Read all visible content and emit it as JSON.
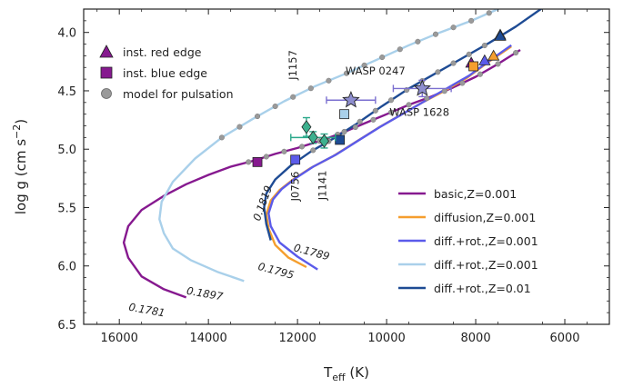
{
  "chart_data": {
    "type": "line",
    "xlabel": {
      "main": "T",
      "sub": "eff",
      "unit": " (K)"
    },
    "ylabel": {
      "main": "log g (cm s",
      "sup": "−2",
      "end": ")"
    },
    "xlim": [
      16800,
      5000
    ],
    "ylim": [
      6.5,
      3.8
    ],
    "x_ticks": [
      16000,
      14000,
      12000,
      10000,
      8000,
      6000
    ],
    "y_ticks": [
      4.0,
      4.5,
      5.0,
      5.5,
      6.0,
      6.5
    ],
    "x_tick_labels": [
      "16000",
      "14000",
      "12000",
      "10000",
      "8000",
      "6000"
    ],
    "y_tick_labels": [
      "4.0",
      "4.5",
      "5.0",
      "5.5",
      "6.0",
      "6.5"
    ],
    "grid": false,
    "colors": {
      "basic": "#86198f",
      "diffusion": "#f59e2e",
      "diffrot001": "#5b5bea",
      "diffrot001light": "#a9d0ea",
      "diffrot01": "#1e4b94",
      "model_point": "#9a9a9a",
      "object_star": "#8e8ecf",
      "error_purple": "#7b6fd0",
      "error_teal": "#2aa88a",
      "diamond": "#3cb08e"
    },
    "tracks": [
      {
        "name": "basic,Z=0.001",
        "color_key": "basic",
        "mass_label": "0.1781",
        "x": [
          14500,
          15000,
          15500,
          15800,
          15900,
          15800,
          15500,
          15000,
          14500,
          14000,
          13500,
          13000,
          12500,
          12000,
          11500,
          11000,
          10500,
          10000,
          9500,
          9000,
          8500,
          8000,
          7500,
          7000
        ],
        "y": [
          6.27,
          6.2,
          6.09,
          5.93,
          5.8,
          5.66,
          5.52,
          5.4,
          5.3,
          5.22,
          5.15,
          5.1,
          5.04,
          4.99,
          4.93,
          4.86,
          4.78,
          4.7,
          4.62,
          4.55,
          4.47,
          4.38,
          4.27,
          4.15
        ]
      },
      {
        "name": "diffusion,Z=0.001",
        "color_key": "diffusion",
        "mass_label": "0.1795",
        "x": [
          11800,
          12200,
          12500,
          12650,
          12700,
          12600,
          12400,
          12100,
          11700,
          11200,
          10700,
          10200,
          9700,
          9200,
          8700,
          8200,
          7700,
          7200
        ],
        "y": [
          6.01,
          5.93,
          5.82,
          5.68,
          5.56,
          5.44,
          5.35,
          5.26,
          5.16,
          5.06,
          4.94,
          4.82,
          4.71,
          4.6,
          4.5,
          4.39,
          4.25,
          4.12
        ]
      },
      {
        "name": "diff.+rot.,Z=0.001",
        "color_key": "diffrot001",
        "mass_label": "0.1789",
        "x": [
          11550,
          12000,
          12400,
          12600,
          12650,
          12550,
          12350,
          12050,
          11650,
          11150,
          10650,
          10150,
          9650,
          9150,
          8650,
          8150,
          7650,
          7200
        ],
        "y": [
          6.03,
          5.92,
          5.8,
          5.66,
          5.55,
          5.43,
          5.34,
          5.25,
          5.15,
          5.05,
          4.93,
          4.81,
          4.7,
          4.59,
          4.48,
          4.37,
          4.23,
          4.11
        ]
      },
      {
        "name": "diff.+rot.,Z=0.001",
        "color_key": "diffrot001light",
        "mass_label": "0.1897",
        "x": [
          13200,
          13800,
          14400,
          14800,
          15000,
          15100,
          15050,
          14800,
          14300,
          13700,
          13000,
          12300,
          11600,
          10900,
          10200,
          9500,
          8800,
          8100,
          7500,
          7000,
          6500
        ],
        "y": [
          6.13,
          6.05,
          5.95,
          5.85,
          5.72,
          5.6,
          5.45,
          5.28,
          5.08,
          4.9,
          4.74,
          4.59,
          4.46,
          4.35,
          4.23,
          4.11,
          4.0,
          3.9,
          3.8,
          3.72,
          3.63
        ]
      },
      {
        "name": "diff.+rot.,Z=0.01",
        "color_key": "diffrot01",
        "mass_label": "0.1819",
        "x": [
          12600,
          12700,
          12750,
          12700,
          12500,
          12150,
          11700,
          11200,
          10700,
          10100,
          9500,
          8900,
          8300,
          7700,
          7100,
          6500
        ],
        "y": [
          5.78,
          5.64,
          5.5,
          5.38,
          5.26,
          5.14,
          5.02,
          4.91,
          4.79,
          4.63,
          4.48,
          4.35,
          4.22,
          4.09,
          3.95,
          3.79
        ]
      }
    ],
    "model_points": [
      {
        "track": 0,
        "x": [
          13100,
          12700,
          12300,
          11900,
          11500,
          11100,
          10700,
          10300,
          9900,
          9500,
          9100,
          8700,
          8300,
          7900,
          7500,
          7100
        ]
      },
      {
        "track": 3,
        "x": [
          13700,
          13300,
          12900,
          12500,
          12100,
          11700,
          11300,
          10900,
          10500,
          10100,
          9700,
          9300,
          8900,
          8500,
          8100,
          7700,
          7300
        ]
      },
      {
        "track": 4,
        "x": [
          12700,
          12350,
          12000,
          11650,
          11300,
          10950,
          10600,
          10250,
          9900,
          9550,
          9200,
          8850,
          8500,
          8150,
          7800,
          7450
        ]
      }
    ],
    "red_edges": [
      {
        "x": 7450,
        "y": 4.02,
        "color_key": "diffrot001light"
      },
      {
        "x": 7450,
        "y": 4.03,
        "color_key": "diffrot01"
      },
      {
        "x": 7600,
        "y": 4.2,
        "color_key": "diffusion"
      },
      {
        "x": 7800,
        "y": 4.24,
        "color_key": "diffrot001"
      },
      {
        "x": 8100,
        "y": 4.26,
        "color_key": "basic"
      }
    ],
    "blue_edges": [
      {
        "x": 12900,
        "y": 5.11,
        "color_key": "basic"
      },
      {
        "x": 12050,
        "y": 5.09,
        "color_key": "diffrot001"
      },
      {
        "x": 11050,
        "y": 4.92,
        "color_key": "diffrot01"
      },
      {
        "x": 10950,
        "y": 4.7,
        "color_key": "diffrot001light"
      },
      {
        "x": 8050,
        "y": 4.29,
        "color_key": "diffusion"
      }
    ],
    "objects": [
      {
        "name": "WASP 0247",
        "label_dx": -6,
        "label_dy": -28,
        "x": 10800,
        "y": 4.58,
        "x_err": 550,
        "y_err": 0.0,
        "shape": "star"
      },
      {
        "name": "WASP 1628",
        "label_dx": -36,
        "label_dy": 30,
        "x": 9200,
        "y": 4.48,
        "x_err": 650,
        "y_err": 0.07,
        "shape": "star"
      },
      {
        "name": "J1157",
        "label_dx": -11,
        "label_dy": -52,
        "x": 11800,
        "y": 4.81,
        "x_err": 0,
        "y_err": 0.08,
        "shape": "diamond"
      },
      {
        "name": "J0756",
        "label_dx": -16,
        "label_dy": 70,
        "x": 11650,
        "y": 4.9,
        "x_err": 500,
        "y_err": 0.05,
        "shape": "diamond"
      },
      {
        "name": "J1141",
        "label_dx": 2,
        "label_dy": 65,
        "x": 11400,
        "y": 4.93,
        "x_err": 0,
        "y_err": 0.06,
        "shape": "diamond"
      }
    ],
    "mass_label_positions": [
      {
        "track": 0,
        "x": 15800,
        "y": 6.38,
        "rotate": 10
      },
      {
        "track": 2,
        "x": 12100,
        "y": 5.87,
        "rotate": 15
      },
      {
        "track": 1,
        "x": 12900,
        "y": 6.03,
        "rotate": 15
      },
      {
        "track": 3,
        "x": 14500,
        "y": 6.24,
        "rotate": 10
      },
      {
        "track": 4,
        "x": 12850,
        "y": 5.62,
        "rotate": -70
      }
    ],
    "legend_symbols": [
      {
        "label": "inst. red edge",
        "shape": "triangle"
      },
      {
        "label": "inst. blue edge",
        "shape": "square"
      },
      {
        "label": "model for pulsation",
        "shape": "circle"
      }
    ],
    "legend_position_symbols": "top-left",
    "legend_position_tracks": "bottom-right"
  }
}
